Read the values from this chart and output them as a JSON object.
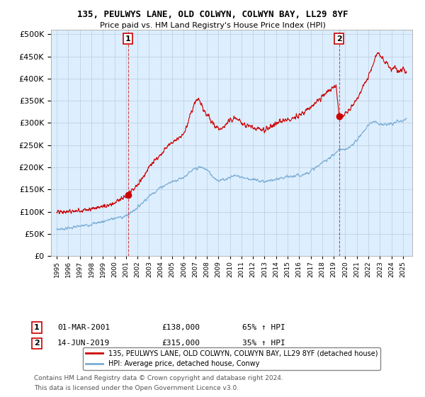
{
  "title": "135, PEULWYS LANE, OLD COLWYN, COLWYN BAY, LL29 8YF",
  "subtitle": "Price paid vs. HM Land Registry's House Price Index (HPI)",
  "y_ticks": [
    0,
    50000,
    100000,
    150000,
    200000,
    250000,
    300000,
    350000,
    400000,
    450000,
    500000
  ],
  "sale1_date": 2001.17,
  "sale1_price": 138000,
  "sale2_date": 2019.45,
  "sale2_price": 315000,
  "sale1_text_date": "01-MAR-2001",
  "sale1_text_price": "£138,000",
  "sale1_text_hpi": "65% ↑ HPI",
  "sale2_text_date": "14-JUN-2019",
  "sale2_text_price": "£315,000",
  "sale2_text_hpi": "35% ↑ HPI",
  "red_line_color": "#cc0000",
  "blue_line_color": "#7aadd4",
  "dashed_vline_color": "#cc0000",
  "plot_bg_color": "#ddeeff",
  "legend_label1": "135, PEULWYS LANE, OLD COLWYN, COLWYN BAY, LL29 8YF (detached house)",
  "legend_label2": "HPI: Average price, detached house, Conwy",
  "footnote1": "Contains HM Land Registry data © Crown copyright and database right 2024.",
  "footnote2": "This data is licensed under the Open Government Licence v3.0.",
  "bg_color": "#ffffff",
  "grid_color": "#bbccdd"
}
